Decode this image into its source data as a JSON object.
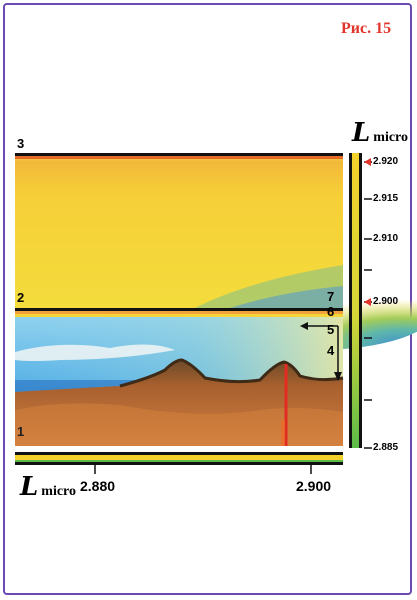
{
  "figure": {
    "label": "Рис. 15"
  },
  "axis_symbol": {
    "letter": "L",
    "subscript": "micro"
  },
  "right_scale": {
    "ticks": [
      {
        "value": "2.920",
        "marker": true
      },
      {
        "value": "2.915",
        "marker": false
      },
      {
        "value": "2.910",
        "marker": false
      },
      {
        "value": "",
        "marker": false
      },
      {
        "value": "2.900",
        "marker": true
      },
      {
        "value": "",
        "marker": false
      },
      {
        "value": "",
        "marker": false
      },
      {
        "value": "2.885",
        "marker": false
      }
    ]
  },
  "bottom_scale": {
    "ticks": [
      "2.880",
      "2.900"
    ]
  },
  "numbers": {
    "n1": "1",
    "n2": "2",
    "n3": "3",
    "n4": "4",
    "n5": "5",
    "n6": "6",
    "n7": "7"
  },
  "colors": {
    "accent": "#e2342a",
    "frame": "#6a4bb3",
    "yellow": "#f6d632",
    "green": "#5bb84a",
    "sky": "#6bbbe6",
    "earth": "#b8683a"
  }
}
